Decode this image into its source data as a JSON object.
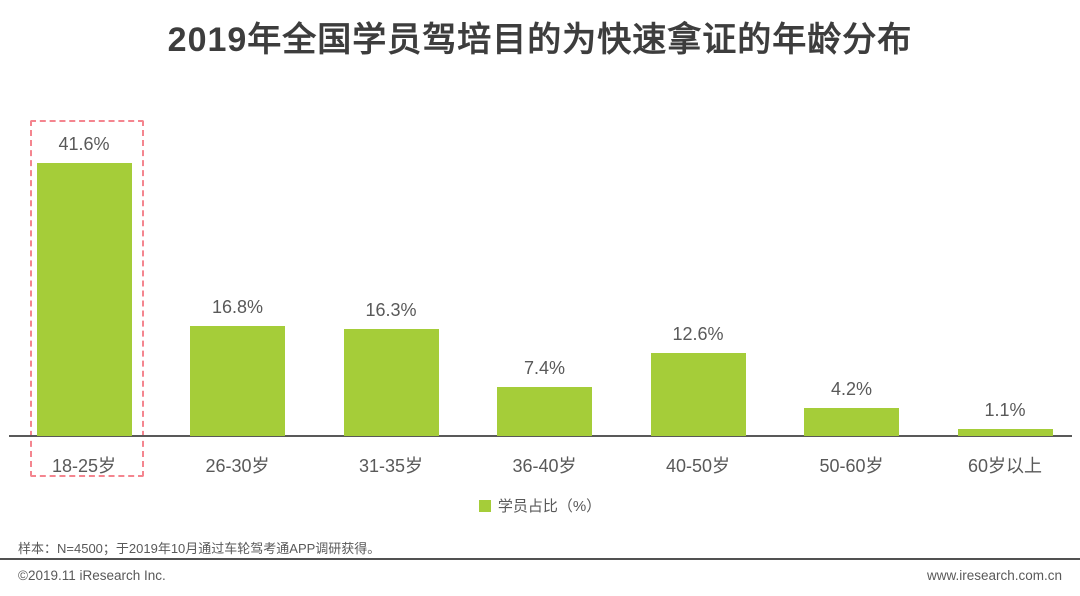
{
  "title": "2019年全国学员驾培目的为快速拿证的年龄分布",
  "chart_data": {
    "type": "bar",
    "categories": [
      "18-25岁",
      "26-30岁",
      "31-35岁",
      "36-40岁",
      "40-50岁",
      "50-60岁",
      "60岁以上"
    ],
    "values": [
      41.6,
      16.8,
      16.3,
      7.4,
      12.6,
      4.2,
      1.1
    ],
    "value_labels": [
      "41.6%",
      "16.8%",
      "16.3%",
      "7.4%",
      "12.6%",
      "4.2%",
      "1.1%"
    ],
    "title": "2019年全国学员驾培目的为快速拿证的年龄分布",
    "xlabel": "",
    "ylabel": "",
    "ylim": [
      0,
      45
    ],
    "grid": false,
    "legend_entries": [
      "学员占比（%）"
    ],
    "legend_position": "bottom-center",
    "bar_color": "#a5cd39",
    "highlighted_category": "18-25岁",
    "highlight_box_color": "#f4858f"
  },
  "legend": {
    "label": "学员占比（%）",
    "swatch_color": "#a5cd39"
  },
  "footer": {
    "note": "样本：N=4500；于2019年10月通过车轮驾考通APP调研获得。",
    "copyright": "©2019.11 iResearch Inc.",
    "website": "www.iresearch.com.cn"
  },
  "colors": {
    "title_text": "#3d3d3d",
    "label_text": "#595959",
    "bar_fill": "#a5cd39",
    "highlight_dash": "#f4858f",
    "axis_line": "#595959",
    "background": "#ffffff"
  }
}
